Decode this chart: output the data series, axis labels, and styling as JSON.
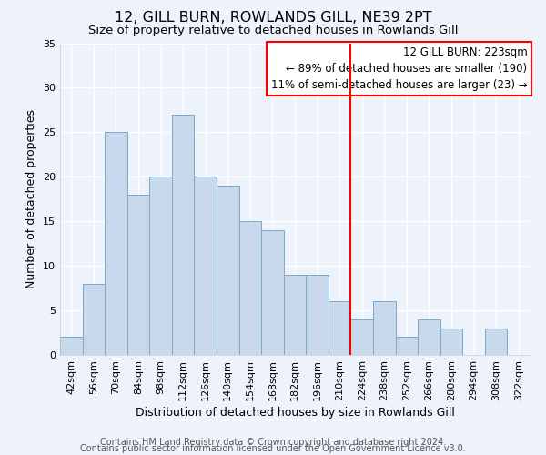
{
  "title": "12, GILL BURN, ROWLANDS GILL, NE39 2PT",
  "subtitle": "Size of property relative to detached houses in Rowlands Gill",
  "xlabel": "Distribution of detached houses by size in Rowlands Gill",
  "ylabel": "Number of detached properties",
  "bin_labels": [
    "42sqm",
    "56sqm",
    "70sqm",
    "84sqm",
    "98sqm",
    "112sqm",
    "126sqm",
    "140sqm",
    "154sqm",
    "168sqm",
    "182sqm",
    "196sqm",
    "210sqm",
    "224sqm",
    "238sqm",
    "252sqm",
    "266sqm",
    "280sqm",
    "294sqm",
    "308sqm",
    "322sqm"
  ],
  "bar_heights": [
    2,
    8,
    25,
    18,
    20,
    27,
    20,
    19,
    15,
    14,
    9,
    9,
    6,
    4,
    6,
    2,
    4,
    3,
    0,
    3,
    0
  ],
  "bar_color": "#c8d9ed",
  "bar_edge_color": "#7aaac8",
  "vline_color": "red",
  "ylim": [
    0,
    35
  ],
  "yticks": [
    0,
    5,
    10,
    15,
    20,
    25,
    30,
    35
  ],
  "annotation_title": "12 GILL BURN: 223sqm",
  "annotation_line1": "← 89% of detached houses are smaller (190)",
  "annotation_line2": "11% of semi-detached houses are larger (23) →",
  "footer1": "Contains HM Land Registry data © Crown copyright and database right 2024.",
  "footer2": "Contains public sector information licensed under the Open Government Licence v3.0.",
  "background_color": "#edf2fb",
  "grid_color": "#ffffff",
  "title_fontsize": 11.5,
  "subtitle_fontsize": 9.5,
  "axis_label_fontsize": 9,
  "tick_fontsize": 8,
  "ann_fontsize": 8.5,
  "footer_fontsize": 7
}
